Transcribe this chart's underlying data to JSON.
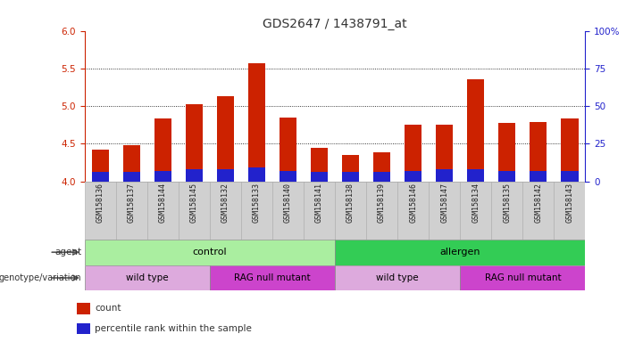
{
  "title": "GDS2647 / 1438791_at",
  "samples": [
    "GSM158136",
    "GSM158137",
    "GSM158144",
    "GSM158145",
    "GSM158132",
    "GSM158133",
    "GSM158140",
    "GSM158141",
    "GSM158138",
    "GSM158139",
    "GSM158146",
    "GSM158147",
    "GSM158134",
    "GSM158135",
    "GSM158142",
    "GSM158143"
  ],
  "count_values": [
    4.42,
    4.48,
    4.83,
    5.02,
    5.13,
    5.57,
    4.85,
    4.44,
    4.35,
    4.38,
    4.75,
    4.75,
    5.35,
    4.78,
    4.79,
    4.83
  ],
  "percentile_values": [
    6,
    6,
    7,
    8,
    8,
    9,
    7,
    6,
    6,
    6,
    7,
    8,
    8,
    7,
    7,
    7
  ],
  "y_min": 4.0,
  "y_max": 6.0,
  "y_ticks_left": [
    4.0,
    4.5,
    5.0,
    5.5,
    6.0
  ],
  "y_ticks_right": [
    0,
    25,
    50,
    75,
    100
  ],
  "bar_color": "#cc2200",
  "percentile_color": "#2222cc",
  "bar_width": 0.55,
  "agent_groups": [
    {
      "label": "control",
      "start": 0,
      "end": 8,
      "color": "#aaeea0"
    },
    {
      "label": "allergen",
      "start": 8,
      "end": 16,
      "color": "#33cc55"
    }
  ],
  "genotype_groups": [
    {
      "label": "wild type",
      "start": 0,
      "end": 4,
      "color": "#ddaadd"
    },
    {
      "label": "RAG null mutant",
      "start": 4,
      "end": 8,
      "color": "#cc44cc"
    },
    {
      "label": "wild type",
      "start": 8,
      "end": 12,
      "color": "#ddaadd"
    },
    {
      "label": "RAG null mutant",
      "start": 12,
      "end": 16,
      "color": "#cc44cc"
    }
  ],
  "legend_items": [
    {
      "label": "count",
      "color": "#cc2200"
    },
    {
      "label": "percentile rank within the sample",
      "color": "#2222cc"
    }
  ],
  "left_axis_color": "#cc2200",
  "right_axis_color": "#2222cc",
  "background_color": "#ffffff",
  "title_fontsize": 10,
  "tick_fontsize": 7.5,
  "sample_fontsize": 6,
  "label_row_bg": "#d0d0d0"
}
